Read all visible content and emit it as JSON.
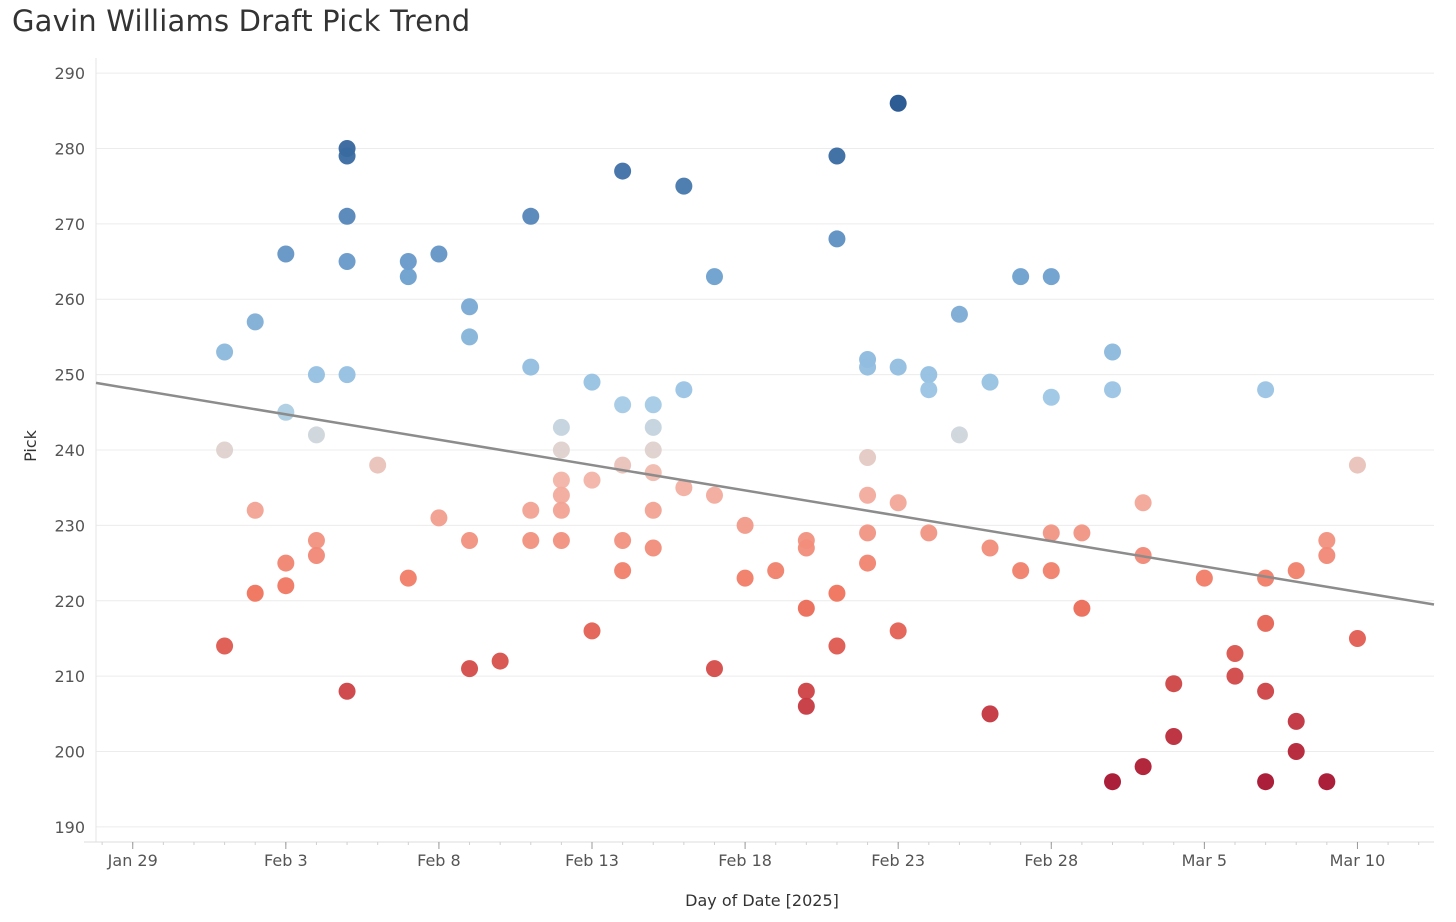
{
  "chart_data": {
    "type": "scatter",
    "title": "Gavin Williams Draft Pick Trend",
    "xlabel": "Day of Date [2025]",
    "ylabel": "Pick",
    "x_range": [
      -1.2,
      42.5
    ],
    "ylim": [
      188,
      292
    ],
    "y_ticks": [
      190,
      200,
      210,
      220,
      230,
      240,
      250,
      260,
      270,
      280,
      290
    ],
    "x_ticks": [
      {
        "day": 0,
        "label": "Jan 29"
      },
      {
        "day": 5,
        "label": "Feb 3"
      },
      {
        "day": 10,
        "label": "Feb 8"
      },
      {
        "day": 15,
        "label": "Feb 13"
      },
      {
        "day": 20,
        "label": "Feb 18"
      },
      {
        "day": 25,
        "label": "Feb 23"
      },
      {
        "day": 30,
        "label": "Feb 28"
      },
      {
        "day": 35,
        "label": "Mar 5"
      },
      {
        "day": 40,
        "label": "Mar 10"
      }
    ],
    "trend_line": {
      "x": [
        -1.2,
        42.5
      ],
      "y": [
        248.9,
        219.5
      ]
    },
    "color_scale": {
      "low": "#a50f2d",
      "mid": "#d9d9d9",
      "high": "#1f4f8a",
      "midpoint": 241
    },
    "grid": true,
    "points": [
      {
        "day": 3,
        "pick": 253
      },
      {
        "day": 3,
        "pick": 240
      },
      {
        "day": 3,
        "pick": 214
      },
      {
        "day": 4,
        "pick": 257
      },
      {
        "day": 4,
        "pick": 232
      },
      {
        "day": 4,
        "pick": 221
      },
      {
        "day": 5,
        "pick": 266
      },
      {
        "day": 5,
        "pick": 245
      },
      {
        "day": 5,
        "pick": 225
      },
      {
        "day": 5,
        "pick": 222
      },
      {
        "day": 6,
        "pick": 250
      },
      {
        "day": 6,
        "pick": 242
      },
      {
        "day": 6,
        "pick": 228
      },
      {
        "day": 6,
        "pick": 226
      },
      {
        "day": 7,
        "pick": 280
      },
      {
        "day": 7,
        "pick": 279
      },
      {
        "day": 7,
        "pick": 271
      },
      {
        "day": 7,
        "pick": 265
      },
      {
        "day": 7,
        "pick": 250
      },
      {
        "day": 7,
        "pick": 208
      },
      {
        "day": 8,
        "pick": 238
      },
      {
        "day": 9,
        "pick": 265
      },
      {
        "day": 9,
        "pick": 263
      },
      {
        "day": 9,
        "pick": 223
      },
      {
        "day": 10,
        "pick": 266
      },
      {
        "day": 10,
        "pick": 231
      },
      {
        "day": 11,
        "pick": 259
      },
      {
        "day": 11,
        "pick": 255
      },
      {
        "day": 11,
        "pick": 228
      },
      {
        "day": 11,
        "pick": 211
      },
      {
        "day": 12,
        "pick": 212
      },
      {
        "day": 13,
        "pick": 271
      },
      {
        "day": 13,
        "pick": 251
      },
      {
        "day": 13,
        "pick": 232
      },
      {
        "day": 13,
        "pick": 228
      },
      {
        "day": 14,
        "pick": 243
      },
      {
        "day": 14,
        "pick": 240
      },
      {
        "day": 14,
        "pick": 236
      },
      {
        "day": 14,
        "pick": 234
      },
      {
        "day": 14,
        "pick": 232
      },
      {
        "day": 14,
        "pick": 228
      },
      {
        "day": 15,
        "pick": 249
      },
      {
        "day": 15,
        "pick": 236
      },
      {
        "day": 15,
        "pick": 216
      },
      {
        "day": 16,
        "pick": 277
      },
      {
        "day": 16,
        "pick": 246
      },
      {
        "day": 16,
        "pick": 238
      },
      {
        "day": 16,
        "pick": 228
      },
      {
        "day": 16,
        "pick": 224
      },
      {
        "day": 17,
        "pick": 246
      },
      {
        "day": 17,
        "pick": 243
      },
      {
        "day": 17,
        "pick": 240
      },
      {
        "day": 17,
        "pick": 237
      },
      {
        "day": 17,
        "pick": 232
      },
      {
        "day": 17,
        "pick": 227
      },
      {
        "day": 18,
        "pick": 275
      },
      {
        "day": 18,
        "pick": 248
      },
      {
        "day": 18,
        "pick": 235
      },
      {
        "day": 19,
        "pick": 263
      },
      {
        "day": 19,
        "pick": 234
      },
      {
        "day": 19,
        "pick": 211
      },
      {
        "day": 20,
        "pick": 230
      },
      {
        "day": 20,
        "pick": 223
      },
      {
        "day": 21,
        "pick": 224
      },
      {
        "day": 22,
        "pick": 228
      },
      {
        "day": 22,
        "pick": 227
      },
      {
        "day": 22,
        "pick": 219
      },
      {
        "day": 22,
        "pick": 208
      },
      {
        "day": 22,
        "pick": 206
      },
      {
        "day": 23,
        "pick": 279
      },
      {
        "day": 23,
        "pick": 268
      },
      {
        "day": 23,
        "pick": 221
      },
      {
        "day": 23,
        "pick": 214
      },
      {
        "day": 24,
        "pick": 252
      },
      {
        "day": 24,
        "pick": 251
      },
      {
        "day": 24,
        "pick": 239
      },
      {
        "day": 24,
        "pick": 234
      },
      {
        "day": 24,
        "pick": 229
      },
      {
        "day": 24,
        "pick": 225
      },
      {
        "day": 25,
        "pick": 286
      },
      {
        "day": 25,
        "pick": 251
      },
      {
        "day": 25,
        "pick": 233
      },
      {
        "day": 25,
        "pick": 216
      },
      {
        "day": 26,
        "pick": 250
      },
      {
        "day": 26,
        "pick": 248
      },
      {
        "day": 26,
        "pick": 229
      },
      {
        "day": 27,
        "pick": 258
      },
      {
        "day": 27,
        "pick": 242
      },
      {
        "day": 28,
        "pick": 249
      },
      {
        "day": 28,
        "pick": 227
      },
      {
        "day": 28,
        "pick": 205
      },
      {
        "day": 29,
        "pick": 263
      },
      {
        "day": 29,
        "pick": 224
      },
      {
        "day": 30,
        "pick": 263
      },
      {
        "day": 30,
        "pick": 247
      },
      {
        "day": 30,
        "pick": 229
      },
      {
        "day": 30,
        "pick": 224
      },
      {
        "day": 31,
        "pick": 229
      },
      {
        "day": 31,
        "pick": 219
      },
      {
        "day": 32,
        "pick": 253
      },
      {
        "day": 32,
        "pick": 248
      },
      {
        "day": 32,
        "pick": 196
      },
      {
        "day": 33,
        "pick": 233
      },
      {
        "day": 33,
        "pick": 226
      },
      {
        "day": 33,
        "pick": 198
      },
      {
        "day": 34,
        "pick": 209
      },
      {
        "day": 34,
        "pick": 202
      },
      {
        "day": 35,
        "pick": 223
      },
      {
        "day": 36,
        "pick": 213
      },
      {
        "day": 36,
        "pick": 210
      },
      {
        "day": 37,
        "pick": 248
      },
      {
        "day": 37,
        "pick": 223
      },
      {
        "day": 37,
        "pick": 217
      },
      {
        "day": 37,
        "pick": 208
      },
      {
        "day": 37,
        "pick": 196
      },
      {
        "day": 38,
        "pick": 224
      },
      {
        "day": 38,
        "pick": 204
      },
      {
        "day": 38,
        "pick": 200
      },
      {
        "day": 39,
        "pick": 228
      },
      {
        "day": 39,
        "pick": 226
      },
      {
        "day": 39,
        "pick": 196
      },
      {
        "day": 40,
        "pick": 238
      },
      {
        "day": 40,
        "pick": 215
      }
    ]
  }
}
